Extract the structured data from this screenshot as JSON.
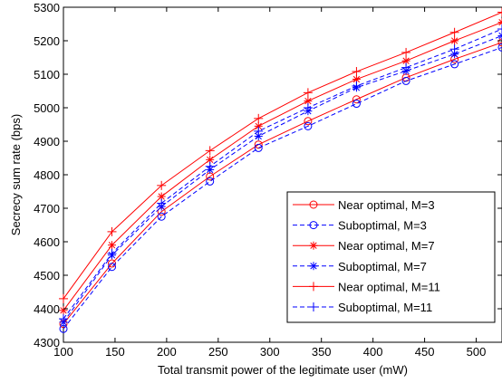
{
  "chart_data": {
    "type": "line",
    "title": "",
    "xlabel": "Total transmit power of the legitimate user (mW)",
    "ylabel": "Secrecy sum rate (bps)",
    "xlim": [
      100,
      525
    ],
    "ylim": [
      4300,
      5300
    ],
    "xticks": [
      100,
      150,
      200,
      250,
      300,
      350,
      400,
      450,
      500
    ],
    "yticks": [
      4300,
      4400,
      4500,
      4600,
      4700,
      4800,
      4900,
      5000,
      5100,
      5200,
      5300
    ],
    "x": [
      100,
      147,
      195,
      242,
      289,
      337,
      384,
      432,
      479,
      525
    ],
    "grid": false,
    "legend_position": "lower-right",
    "series": [
      {
        "name": "Near optimal, M=3",
        "color": "#ff0000",
        "dash": "solid",
        "marker": "circle",
        "values": [
          4355,
          4535,
          4690,
          4795,
          4890,
          4960,
          5025,
          5090,
          5145,
          5195
        ]
      },
      {
        "name": "Suboptimal, M=3",
        "color": "#0000ff",
        "dash": "dashed",
        "marker": "circle",
        "values": [
          4340,
          4525,
          4675,
          4780,
          4880,
          4945,
          5012,
          5080,
          5130,
          5180
        ]
      },
      {
        "name": "Near optimal, M=7",
        "color": "#ff0000",
        "dash": "solid",
        "marker": "asterisk",
        "values": [
          4395,
          4590,
          4735,
          4845,
          4945,
          5020,
          5085,
          5140,
          5200,
          5255
        ]
      },
      {
        "name": "Suboptimal, M=7",
        "color": "#0000ff",
        "dash": "dashed",
        "marker": "asterisk",
        "values": [
          4360,
          4560,
          4705,
          4815,
          4915,
          4990,
          5060,
          5110,
          5160,
          5215
        ]
      },
      {
        "name": "Near optimal, M=11",
        "color": "#ff0000",
        "dash": "solid",
        "marker": "plus",
        "values": [
          4430,
          4630,
          4768,
          4872,
          4968,
          5045,
          5108,
          5165,
          5225,
          5285
        ]
      },
      {
        "name": "Suboptimal, M=11",
        "color": "#0000ff",
        "dash": "dashed",
        "marker": "plus",
        "values": [
          4370,
          4565,
          4715,
          4825,
          4930,
          5000,
          5065,
          5120,
          5175,
          5235
        ]
      }
    ]
  }
}
